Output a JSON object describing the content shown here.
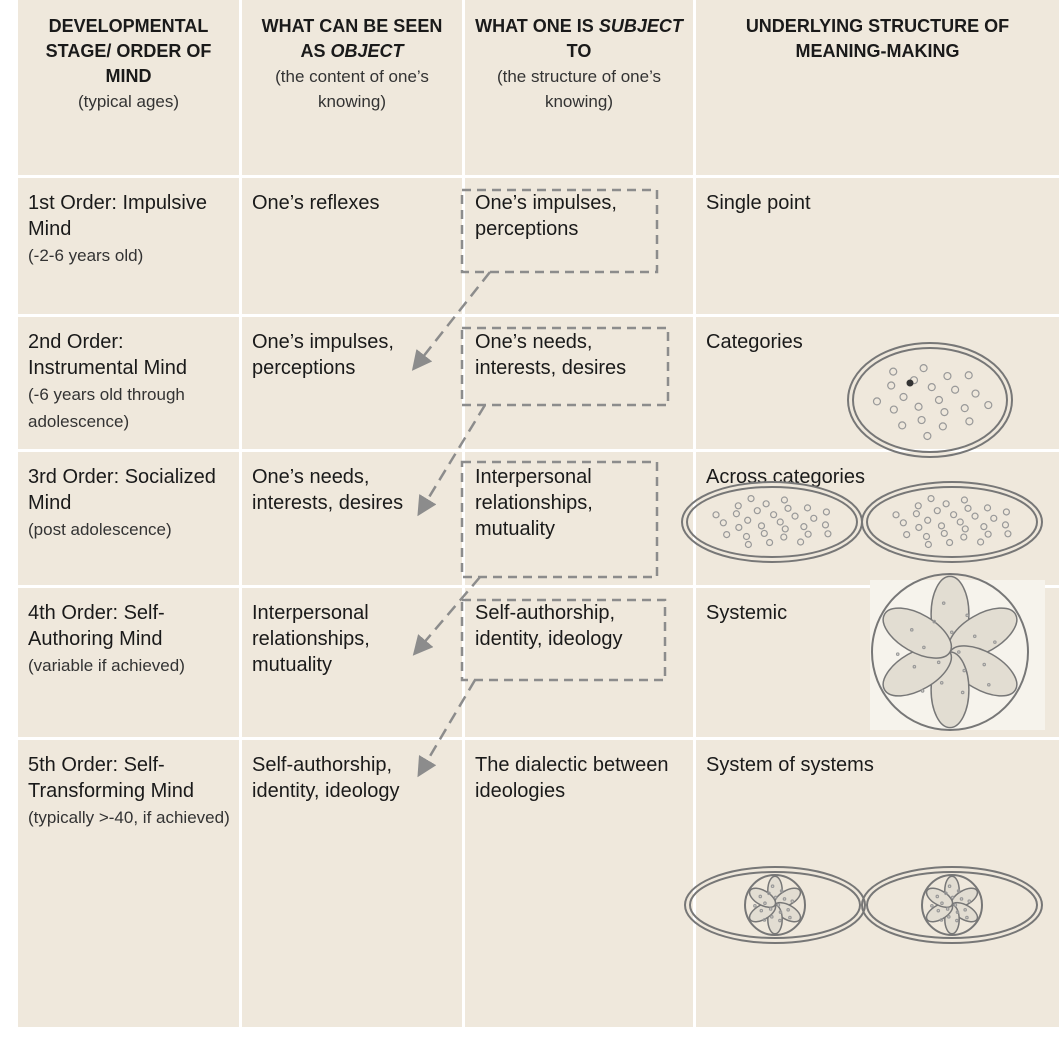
{
  "header": [
    {
      "title": "DEVELOPMENTAL STAGE/ ORDER OF MIND",
      "note": "(typical ages)"
    },
    {
      "title": "WHAT CAN BE SEEN AS",
      "emphasis": "OBJECT",
      "note": "(the content of one’s knowing)"
    },
    {
      "title": "WHAT ONE IS",
      "emphasis": "SUBJECT",
      "title_end": "TO",
      "note": "(the structure of one’s knowing)"
    },
    {
      "title": "UNDERLYING STRUCTURE OF MEANING-MAKING"
    }
  ],
  "rows": [
    {
      "stage": "1st Order: Impulsive Mind",
      "ages": "(-2-6 years old)",
      "object": "One’s reflexes",
      "subject": "One’s impulses, perceptions",
      "structure": "Single point"
    },
    {
      "stage": "2nd Order: Instrumental Mind",
      "ages": "(-6 years old through adolescence)",
      "object": "One’s impulses, perceptions",
      "subject": "One’s needs, interests, desires",
      "structure": "Categories"
    },
    {
      "stage": "3rd Order: Socialized Mind",
      "ages": "(post adolescence)",
      "object": "One’s needs, interests, desires",
      "subject": "Interpersonal relationships, mutuality",
      "structure": "Across categories"
    },
    {
      "stage": "4th Order: Self-Authoring Mind",
      "ages": "(variable if achieved)",
      "object": "Interpersonal relationships, mutuality",
      "subject": "Self-authorship, identity, ideology",
      "structure": "Systemic"
    },
    {
      "stage": "5th Order: Self-Transforming Mind",
      "ages": "(typically >-40, if achieved)",
      "object": "Self-authorship, identity, ideology",
      "subject": "The dialectic between ideologies",
      "structure": "System of systems"
    }
  ]
}
